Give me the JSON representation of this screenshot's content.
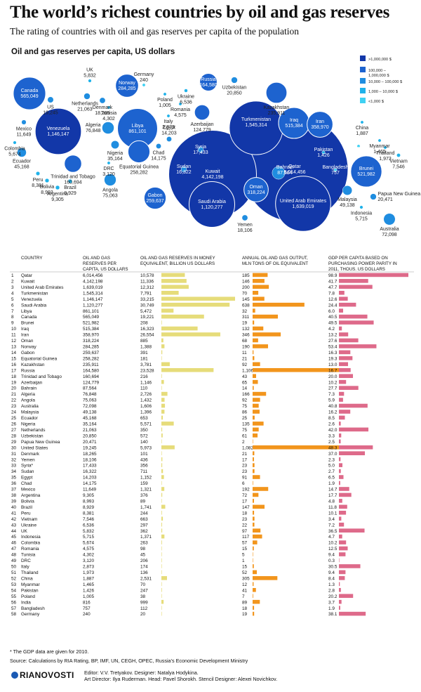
{
  "title": "The world’s richest countries by oil and gas reserves",
  "subtitle": "The rating of countries with oil and gas reserves per capita of the population",
  "map_title": "Oil and gas reserves per capita, US dollars",
  "legend": {
    "items": [
      {
        "label": ">1,000,000 $",
        "color": "#1237a8"
      },
      {
        "label": "100,000 –\n1,000,000 $",
        "color": "#1d63cf"
      },
      {
        "label": "10,000 – 100,000 $",
        "color": "#1f8de0"
      },
      {
        "label": "1,000 – 10,000 $",
        "color": "#1fb2ea"
      },
      {
        "label": "<1,000 $",
        "color": "#3fd1f3"
      }
    ]
  },
  "columns": {
    "country": "COUNTRY",
    "reserves_pc": "OIL AND GAS\nRESERVES PER\nCAPITA, US DOLLARS",
    "reserves_money": "OIL AND GAS RESERVES IN MONEY\nEQUIVALENT, BILLION US DOLLARS",
    "output": "ANNUAL OIL AND GAS OUTPUT,\nMLN TONS OF OIL EQUIVALENT",
    "gdp": "GDP PER CAPITA BASED ON\nPURCHASING POWER PARITY IN\n2011, THOUS. US DOLLARS"
  },
  "colors": {
    "money_bar": "#e6dc7a",
    "output_bar": "#f2951c",
    "gdp_bar": "#de6a8a"
  },
  "chart_data": {
    "type": "table",
    "rows": [
      {
        "rank": 1,
        "country": "Qatar",
        "pc": "6,014,456",
        "money": "10,578",
        "output": "185",
        "gdp": "98.9"
      },
      {
        "rank": 2,
        "country": "Kuwait",
        "pc": "4,142,198",
        "money": "11,336",
        "output": "146",
        "gdp": "41.7"
      },
      {
        "rank": 3,
        "country": "United Arab Emirates",
        "pc": "1,639,019",
        "money": "12,312",
        "output": "200",
        "gdp": "47.7"
      },
      {
        "rank": 4,
        "country": "Turkmenistan",
        "pc": "1,545,314",
        "money": "7,791",
        "output": "70",
        "gdp": "7.8"
      },
      {
        "rank": 5,
        "country": "Venezuela",
        "pc": "1,146,147",
        "money": "33,215",
        "output": "145",
        "gdp": "12.6"
      },
      {
        "rank": 6,
        "country": "Saudi Arabia",
        "pc": "1,120,277",
        "money": "30,749",
        "output": "638",
        "gdp": "24.4"
      },
      {
        "rank": 7,
        "country": "Libya",
        "pc": "861,101",
        "money": "5,472",
        "output": "32",
        "gdp": "6.0"
      },
      {
        "rank": 8,
        "country": "Canada",
        "pc": "565,049",
        "money": "19,221",
        "output": "311",
        "gdp": "40.5"
      },
      {
        "rank": 9,
        "country": "Brunei",
        "pc": "521,982",
        "money": "208",
        "output": "19",
        "gdp": "49.5"
      },
      {
        "rank": 10,
        "country": "Iraq",
        "pc": "515,384",
        "money": "16,323",
        "output": "132",
        "gdp": "4.2"
      },
      {
        "rank": 11,
        "country": "Iran",
        "pc": "358,970",
        "money": "26,554",
        "output": "346",
        "gdp": "13.2"
      },
      {
        "rank": 12,
        "country": "Oman",
        "pc": "318,224",
        "money": "885",
        "output": "68",
        "gdp": "27.6"
      },
      {
        "rank": 13,
        "country": "Norway",
        "pc": "284,285",
        "money": "1,388",
        "output": "190",
        "gdp": "53.4"
      },
      {
        "rank": 14,
        "country": "Gabon",
        "pc": "259,637",
        "money": "391",
        "output": "11",
        "gdp": "16.3"
      },
      {
        "rank": 15,
        "country": "Equatorial Guinea",
        "pc": "258,282",
        "money": "181",
        "output": "21",
        "gdp": "19.3"
      },
      {
        "rank": 16,
        "country": "Kazakhstan",
        "pc": "235,911",
        "money": "3,781",
        "output": "92",
        "gdp": "13.0"
      },
      {
        "rank": 17,
        "country": "Russia",
        "pc": "164,580",
        "money": "23,528",
        "output": "1,106",
        "gdp": "16.7"
      },
      {
        "rank": 18,
        "country": "Trinidad and Tobago",
        "pc": "160,694",
        "money": "216",
        "output": "43",
        "gdp": "20.0"
      },
      {
        "rank": 19,
        "country": "Azerbaijan",
        "pc": "124,779",
        "money": "1,146",
        "output": "65",
        "gdp": "10.2"
      },
      {
        "rank": 20,
        "country": "Bahrain",
        "pc": "87,564",
        "money": "110",
        "output": "14",
        "gdp": "27.7"
      },
      {
        "rank": 21,
        "country": "Algeria",
        "pc": "76,848",
        "money": "2,726",
        "output": "166",
        "gdp": "7.3"
      },
      {
        "rank": 22,
        "country": "Angola",
        "pc": "75,063",
        "money": "1,432",
        "output": "92",
        "gdp": "5.9"
      },
      {
        "rank": 23,
        "country": "Australia",
        "pc": "72,098",
        "money": "1,606",
        "output": "75",
        "gdp": "40.8"
      },
      {
        "rank": 24,
        "country": "Malaysia",
        "pc": "49,138",
        "money": "1,396",
        "output": "86",
        "gdp": "16.2"
      },
      {
        "rank": 25,
        "country": "Ecuador",
        "pc": "45,168",
        "money": "653",
        "output": "25",
        "gdp": "8.5"
      },
      {
        "rank": 26,
        "country": "Nigeria",
        "pc": "35,164",
        "money": "5,571",
        "output": "135",
        "gdp": "2.6"
      },
      {
        "rank": 27,
        "country": "Netherlands",
        "pc": "21,063",
        "money": "350",
        "output": "75",
        "gdp": "42.0"
      },
      {
        "rank": 28,
        "country": "Uzbekistan",
        "pc": "20,850",
        "money": "572",
        "output": "61",
        "gdp": "3.3"
      },
      {
        "rank": 29,
        "country": "Papua New Guinea",
        "pc": "20,471",
        "money": "140",
        "output": "2",
        "gdp": "2.5"
      },
      {
        "rank": 30,
        "country": "United States",
        "pc": "19,245",
        "money": "5,973",
        "output": "1,082",
        "gdp": "48.3"
      },
      {
        "rank": 31,
        "country": "Denmark",
        "pc": "18,265",
        "money": "101",
        "output": "21",
        "gdp": "37.0"
      },
      {
        "rank": 32,
        "country": "Yemen",
        "pc": "18,106",
        "money": "436",
        "output": "17",
        "gdp": "2.3"
      },
      {
        "rank": 33,
        "country": "Syria*",
        "pc": "17,433",
        "money": "356",
        "output": "23",
        "gdp": "5.0"
      },
      {
        "rank": 34,
        "country": "Sudan",
        "pc": "16,322",
        "money": "711",
        "output": "23",
        "gdp": "2.7"
      },
      {
        "rank": 35,
        "country": "Egypt",
        "pc": "14,203",
        "money": "1,152",
        "output": "91",
        "gdp": "6.5"
      },
      {
        "rank": 36,
        "country": "Chad",
        "pc": "14,175",
        "money": "159",
        "output": "6",
        "gdp": "1.9"
      },
      {
        "rank": 37,
        "country": "Mexico",
        "pc": "11,649",
        "money": "1,321",
        "output": "192",
        "gdp": "14.7"
      },
      {
        "rank": 38,
        "country": "Argentina",
        "pc": "9,305",
        "money": "376",
        "output": "72",
        "gdp": "17.7"
      },
      {
        "rank": 39,
        "country": "Bolivia",
        "pc": "8,993",
        "money": "89",
        "output": "17",
        "gdp": "4.8"
      },
      {
        "rank": 40,
        "country": "Brazil",
        "pc": "8,929",
        "money": "1,741",
        "output": "147",
        "gdp": "11.8"
      },
      {
        "rank": 41,
        "country": "Peru",
        "pc": "8,381",
        "money": "244",
        "output": "18",
        "gdp": "10.1"
      },
      {
        "rank": 42,
        "country": "Vietnam",
        "pc": "7,546",
        "money": "663",
        "output": "23",
        "gdp": "3.4"
      },
      {
        "rank": 43,
        "country": "Ukraine",
        "pc": "6,536",
        "money": "297",
        "output": "22",
        "gdp": "7.2"
      },
      {
        "rank": 44,
        "country": "UK",
        "pc": "5,832",
        "money": "362",
        "output": "97",
        "gdp": "36.5"
      },
      {
        "rank": 45,
        "country": "Indonesia",
        "pc": "5,715",
        "money": "1,371",
        "output": "117",
        "gdp": "4.7"
      },
      {
        "rank": 46,
        "country": "Colombia",
        "pc": "5,674",
        "money": "263",
        "output": "57",
        "gdp": "10.2"
      },
      {
        "rank": 47,
        "country": "Romania",
        "pc": "4,575",
        "money": "98",
        "output": "15",
        "gdp": "12.5"
      },
      {
        "rank": 48,
        "country": "Tunisia",
        "pc": "4,302",
        "money": "45",
        "output": "5",
        "gdp": "9.4"
      },
      {
        "rank": 49,
        "country": "DRC",
        "pc": "3,120",
        "money": "206",
        "output": "1",
        "gdp": "0.3"
      },
      {
        "rank": 50,
        "country": "Italy",
        "pc": "2,873",
        "money": "174",
        "output": "15",
        "gdp": "30.5"
      },
      {
        "rank": 51,
        "country": "Thailand",
        "pc": "1,973",
        "money": "136",
        "output": "52",
        "gdp": "9.4"
      },
      {
        "rank": 52,
        "country": "China",
        "pc": "1,887",
        "money": "2,531",
        "output": "305",
        "gdp": "8.4"
      },
      {
        "rank": 53,
        "country": "Myanmar",
        "pc": "1,465",
        "money": "70",
        "output": "12",
        "gdp": "1.3"
      },
      {
        "rank": 54,
        "country": "Pakistan",
        "pc": "1,426",
        "money": "247",
        "output": "41",
        "gdp": "2.8"
      },
      {
        "rank": 55,
        "country": "Poland",
        "pc": "1,005",
        "money": "38",
        "output": "7",
        "gdp": "20.2"
      },
      {
        "rank": 56,
        "country": "India",
        "pc": "816",
        "money": "999",
        "output": "89",
        "gdp": "3.7"
      },
      {
        "rank": 57,
        "country": "Bangladesh",
        "pc": "757",
        "money": "112",
        "output": "18",
        "gdp": "1.9"
      },
      {
        "rank": 58,
        "country": "Germany",
        "pc": "240",
        "money": "20",
        "output": "19",
        "gdp": "38.1"
      }
    ]
  },
  "bubbles": [
    {
      "name": "Canada",
      "value": "565,049"
    },
    {
      "name": "US",
      "value": "19,245"
    },
    {
      "name": "Mexico",
      "value": "11,649"
    },
    {
      "name": "Venezuela",
      "value": "1,146,147"
    },
    {
      "name": "Colombia",
      "value": "5,674"
    },
    {
      "name": "Ecuador",
      "value": "45,168"
    },
    {
      "name": "Peru",
      "value": "8,381"
    },
    {
      "name": "Bolivia",
      "value": "8,993"
    },
    {
      "name": "Brazil",
      "value": "8,929"
    },
    {
      "name": "Argentina",
      "value": "9,305"
    },
    {
      "name": "Trinidad and Tobago",
      "value": "160,694"
    },
    {
      "name": "UK",
      "value": "5,832"
    },
    {
      "name": "Netherlands",
      "value": "21,063"
    },
    {
      "name": "Denmark",
      "value": "18,265"
    },
    {
      "name": "Norway",
      "value": "284,285"
    },
    {
      "name": "Germany",
      "value": "240"
    },
    {
      "name": "Tunisia",
      "value": "4,302"
    },
    {
      "name": "Algeria",
      "value": "76,848"
    },
    {
      "name": "Libya",
      "value": "861,101"
    },
    {
      "name": "Nigeria",
      "value": "35,164"
    },
    {
      "name": "DRC",
      "value": "3,120"
    },
    {
      "name": "Angola",
      "value": "75,063"
    },
    {
      "name": "Equatorial Guinea",
      "value": "258,282"
    },
    {
      "name": "Gabon",
      "value": "259,637"
    },
    {
      "name": "Chad",
      "value": "14,175"
    },
    {
      "name": "Egypt",
      "value": "14,203"
    },
    {
      "name": "Italy",
      "value": "2,873"
    },
    {
      "name": "Poland",
      "value": "1,005"
    },
    {
      "name": "Romania",
      "value": "4,575"
    },
    {
      "name": "Ukraine",
      "value": "6,536"
    },
    {
      "name": "Russia",
      "value": "164,580"
    },
    {
      "name": "Uzbekistan",
      "value": "20,850"
    },
    {
      "name": "Kazakhstan",
      "value": "235,911"
    },
    {
      "name": "Azerbaijan",
      "value": "124,779"
    },
    {
      "name": "Turkmenistan",
      "value": "1,545,314"
    },
    {
      "name": "Iraq",
      "value": "515,384"
    },
    {
      "name": "Iran",
      "value": "358,970"
    },
    {
      "name": "Syria",
      "value": "17,433"
    },
    {
      "name": "Sudan",
      "value": "16,322"
    },
    {
      "name": "Kuwait",
      "value": "4,142,198"
    },
    {
      "name": "Saudi Arabia",
      "value": "1,120,277"
    },
    {
      "name": "Qatar",
      "value": "6,014,456"
    },
    {
      "name": "Bahrain",
      "value": "87,564"
    },
    {
      "name": "Oman",
      "value": "318,224"
    },
    {
      "name": "United Arab Emirates",
      "value": "1,639,019"
    },
    {
      "name": "Yemen",
      "value": "18,106"
    },
    {
      "name": "Pakistan",
      "value": "1,426"
    },
    {
      "name": "Bangladesh",
      "value": "757"
    },
    {
      "name": "India",
      "value": "816"
    },
    {
      "name": "China",
      "value": "1,887"
    },
    {
      "name": "Myanmar",
      "value": "1,465"
    },
    {
      "name": "Thailand",
      "value": "1,973"
    },
    {
      "name": "Vietnam",
      "value": "7,546"
    },
    {
      "name": "Brunei",
      "value": "521,982"
    },
    {
      "name": "Malaysia",
      "value": "49,138"
    },
    {
      "name": "Indonesia",
      "value": "5,715"
    },
    {
      "name": "Papua New Guinea",
      "value": "20,471"
    },
    {
      "name": "Australia",
      "value": "72,098"
    }
  ],
  "footnote": "* The GDP data are given for 2010.",
  "source": "Source: Calculations by RIA Rating, BP, IMF, UN, CEGH, OPEC, Russia’s Economic Development Ministry",
  "credits": {
    "line1": "Editor: V.V. Tretyakov. Designer: Natalya Hodykina.",
    "line2": "Art Director: Ilya Ruderman. Head: Pavel Shorokh. Stencil Designer: Alexei Novichkov."
  },
  "logo": "RIANOVOSTI"
}
